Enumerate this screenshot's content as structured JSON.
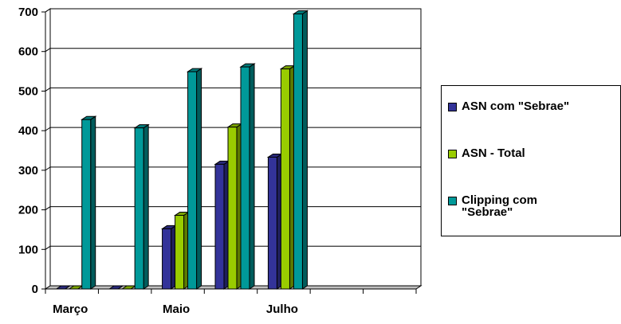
{
  "chart_data": {
    "type": "bar",
    "title": "",
    "xlabel": "",
    "ylabel": "",
    "categories": [
      "Março",
      "",
      "Maio",
      "",
      "Julho",
      "",
      ""
    ],
    "ylim": [
      0,
      700
    ],
    "yticks": [
      "0",
      "100",
      "200",
      "300",
      "400",
      "500",
      "600",
      "700"
    ],
    "grid": true,
    "legend_position": "right",
    "series": [
      {
        "name": "ASN com \"Sebrae\"",
        "color": "#333399",
        "values": [
          0,
          0,
          152,
          315,
          333,
          null,
          null
        ]
      },
      {
        "name": "ASN - Total",
        "color": "#99CC00",
        "values": [
          0,
          0,
          186,
          409,
          556,
          null,
          null
        ]
      },
      {
        "name": "Clipping com\n\"Sebrae\"",
        "color": "#009999",
        "values": [
          428,
          407,
          549,
          561,
          695,
          null,
          null
        ]
      }
    ]
  }
}
